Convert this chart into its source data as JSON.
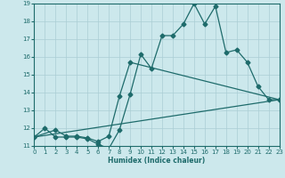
{
  "xlabel": "Humidex (Indice chaleur)",
  "bg_color": "#cce8ec",
  "grid_color": "#aacdd4",
  "line_color": "#1e6b6b",
  "xmin": 0,
  "xmax": 23,
  "ymin": 11,
  "ymax": 19,
  "line1_x": [
    0,
    1,
    2,
    3,
    4,
    5,
    6,
    7,
    8,
    9,
    10,
    11,
    12,
    13,
    14,
    15,
    16,
    17,
    18,
    19,
    20,
    21,
    22,
    23
  ],
  "line1_y": [
    11.5,
    12.0,
    11.5,
    11.5,
    11.5,
    11.4,
    11.1,
    10.85,
    11.9,
    13.9,
    16.15,
    15.35,
    17.2,
    17.2,
    17.85,
    19.0,
    17.85,
    18.85,
    16.25,
    16.4,
    15.7,
    14.35,
    13.6,
    13.6
  ],
  "line2_x": [
    0,
    2,
    3,
    4,
    5,
    6,
    7,
    8,
    9,
    23
  ],
  "line2_y": [
    11.5,
    11.9,
    11.55,
    11.55,
    11.45,
    11.25,
    11.55,
    13.8,
    15.7,
    13.6
  ],
  "line3_x": [
    0,
    23
  ],
  "line3_y": [
    11.5,
    13.6
  ]
}
